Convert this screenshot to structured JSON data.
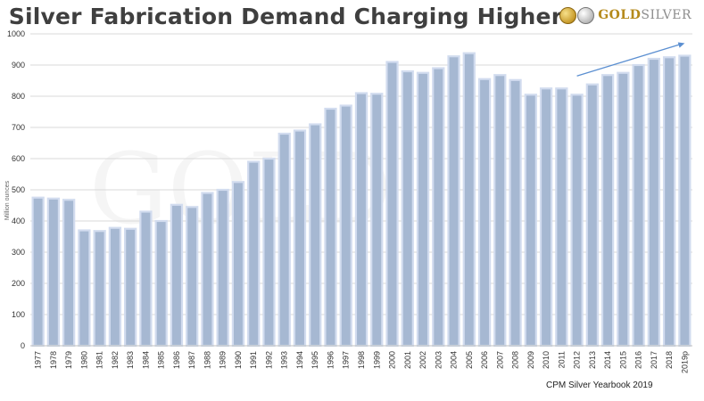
{
  "header": {
    "title": "Silver Fabrication Demand Charging Higher",
    "logo_part1": "GOLD",
    "logo_part2": "SILVER"
  },
  "source": "CPM Silver Yearbook 2019",
  "watermark": "GOLD",
  "colors": {
    "bar_fill": "#a6b8d2",
    "bar_stroke": "#d2dcef",
    "gridline": "#d9d9d9",
    "arrow": "#5b8fd1"
  },
  "chart_data": {
    "type": "bar",
    "ylabel": "Million ounces",
    "ylim": [
      0,
      1000
    ],
    "yticks": [
      0,
      100,
      200,
      300,
      400,
      500,
      600,
      700,
      800,
      900,
      1000
    ],
    "grid": true,
    "trend_arrow": {
      "from_category": "2012",
      "to_category": "2019p",
      "from_value": 865,
      "to_value": 970
    },
    "categories": [
      "1977",
      "1978",
      "1979",
      "1980",
      "1981",
      "1982",
      "1983",
      "1984",
      "1985",
      "1986",
      "1987",
      "1988",
      "1989",
      "1990",
      "1991",
      "1992",
      "1993",
      "1994",
      "1995",
      "1996",
      "1997",
      "1998",
      "1999",
      "2000",
      "2001",
      "2002",
      "2003",
      "2004",
      "2005",
      "2006",
      "2007",
      "2008",
      "2009",
      "2010",
      "2011",
      "2012",
      "2013",
      "2014",
      "2015",
      "2016",
      "2017",
      "2018",
      "2019p"
    ],
    "values": [
      475,
      472,
      468,
      370,
      368,
      378,
      375,
      430,
      400,
      452,
      445,
      490,
      500,
      525,
      590,
      600,
      680,
      690,
      710,
      760,
      770,
      810,
      808,
      910,
      880,
      875,
      890,
      928,
      938,
      855,
      868,
      852,
      805,
      825,
      825,
      805,
      838,
      868,
      875,
      900,
      920,
      925,
      930
    ]
  }
}
